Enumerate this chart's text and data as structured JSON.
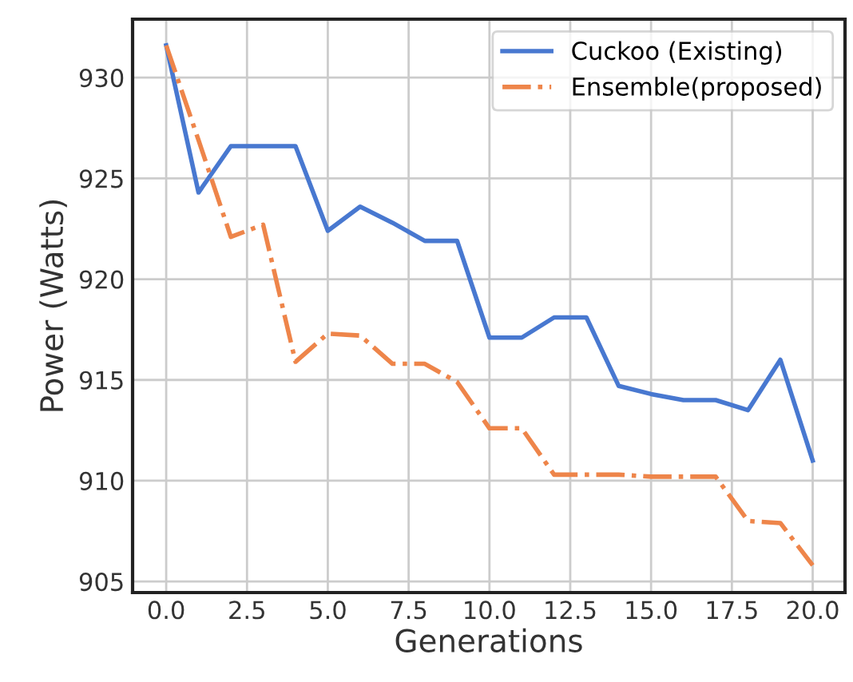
{
  "chart_data": {
    "type": "line",
    "xlabel": "Generations",
    "ylabel": "Power (Watts)",
    "x": [
      0,
      1,
      2,
      3,
      4,
      5,
      6,
      7,
      8,
      9,
      10,
      11,
      12,
      13,
      14,
      15,
      16,
      17,
      18,
      19,
      20
    ],
    "series": [
      {
        "name": "Cuckoo (Existing)",
        "color": "#4878d0",
        "line_style": "solid",
        "values": [
          931.6,
          924.3,
          926.6,
          926.6,
          926.6,
          922.4,
          923.6,
          922.8,
          921.9,
          921.9,
          917.1,
          917.1,
          918.1,
          918.1,
          914.7,
          914.3,
          914.0,
          914.0,
          913.5,
          916.0,
          911.0
        ]
      },
      {
        "name": "Ensemble(proposed)",
        "color": "#ee854a",
        "line_style": "dashdot",
        "values": [
          931.6,
          926.9,
          922.1,
          922.7,
          915.9,
          917.3,
          917.2,
          915.8,
          915.8,
          914.9,
          912.6,
          912.6,
          910.3,
          910.3,
          910.3,
          910.2,
          910.2,
          910.2,
          908.0,
          907.9,
          905.8
        ]
      }
    ],
    "xlim": [
      -1.04,
      21.0
    ],
    "ylim": [
      904.45,
      932.9
    ],
    "xticks": [
      {
        "value": 0,
        "label": "0.0"
      },
      {
        "value": 2.5,
        "label": "2.5"
      },
      {
        "value": 5,
        "label": "5.0"
      },
      {
        "value": 7.5,
        "label": "7.5"
      },
      {
        "value": 10,
        "label": "10.0"
      },
      {
        "value": 12.5,
        "label": "12.5"
      },
      {
        "value": 15,
        "label": "15.0"
      },
      {
        "value": 17.5,
        "label": "17.5"
      },
      {
        "value": 20,
        "label": "20.0"
      }
    ],
    "yticks": [
      905,
      910,
      915,
      920,
      925,
      930
    ],
    "grid": true,
    "legend": "top right"
  }
}
